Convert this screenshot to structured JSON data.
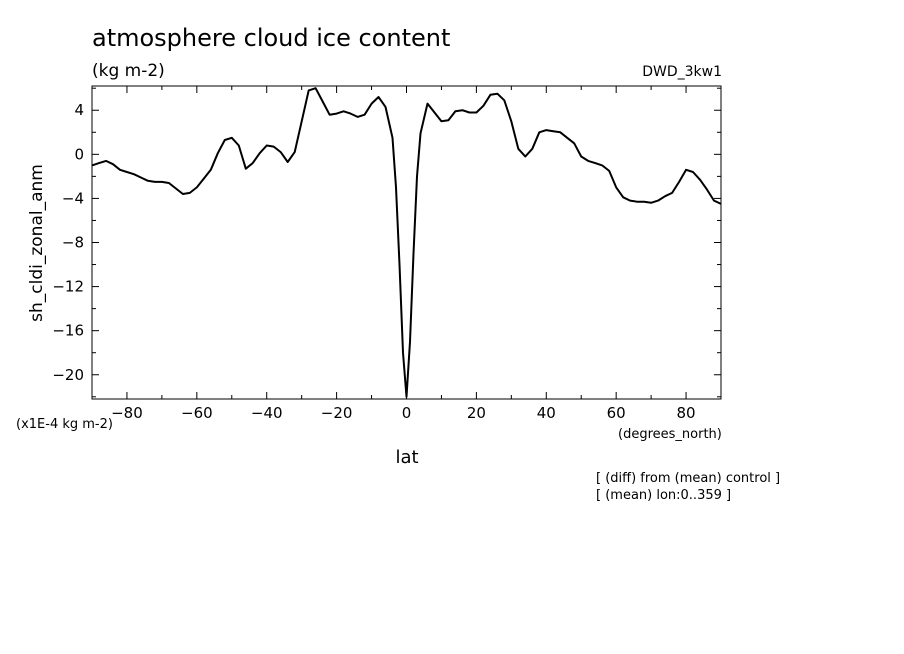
{
  "chart_data": {
    "type": "line",
    "title": "atmosphere cloud ice content",
    "title_units": "(kg m-2)",
    "model_label": "DWD_3kw1",
    "ylabel": "sh_cldi_zonal_anm",
    "y_scale_label": "(x1E-4 kg m-2)",
    "xlabel": "lat",
    "x_units_label": "(degrees_north)",
    "notes": [
      "[ (diff) from (mean) control ]",
      "[ (mean) lon:0..359 ]"
    ],
    "xlim": [
      -90,
      90
    ],
    "ylim": [
      -22.2,
      6.2
    ],
    "x_ticks": [
      -80,
      -60,
      -40,
      -20,
      0,
      20,
      40,
      60,
      80
    ],
    "y_ticks": [
      4,
      0,
      -4,
      -8,
      -12,
      -16,
      -20
    ],
    "grid": false,
    "series": [
      {
        "x": [
          -90,
          -88,
          -86,
          -84,
          -82,
          -80,
          -78,
          -76,
          -74,
          -72,
          -70,
          -68,
          -66,
          -64,
          -62,
          -60,
          -58,
          -56,
          -54,
          -52,
          -50,
          -48,
          -46,
          -44,
          -42,
          -40,
          -38,
          -36,
          -34,
          -32,
          -30,
          -28,
          -26,
          -24,
          -22,
          -20,
          -18,
          -16,
          -14,
          -12,
          -10,
          -8,
          -6,
          -4,
          -3,
          -2,
          -1,
          0,
          1,
          2,
          3,
          4,
          6,
          8,
          10,
          12,
          14,
          16,
          18,
          20,
          22,
          24,
          26,
          28,
          30,
          32,
          34,
          36,
          38,
          40,
          42,
          44,
          46,
          48,
          50,
          52,
          54,
          56,
          58,
          60,
          62,
          64,
          66,
          68,
          70,
          72,
          74,
          76,
          78,
          80,
          82,
          84,
          86,
          88,
          90
        ],
        "y": [
          -1.0,
          -0.8,
          -0.6,
          -0.9,
          -1.4,
          -1.6,
          -1.8,
          -2.1,
          -2.4,
          -2.5,
          -2.5,
          -2.6,
          -3.1,
          -3.6,
          -3.5,
          -3.0,
          -2.2,
          -1.4,
          0.1,
          1.3,
          1.5,
          0.8,
          -1.3,
          -0.8,
          0.1,
          0.8,
          0.7,
          0.2,
          -0.7,
          0.2,
          3.0,
          5.8,
          6.0,
          4.8,
          3.6,
          3.7,
          3.9,
          3.7,
          3.4,
          3.6,
          4.6,
          5.2,
          4.3,
          1.5,
          -3.0,
          -10.0,
          -18.0,
          -22.0,
          -17.0,
          -9.0,
          -2.0,
          1.9,
          4.6,
          3.8,
          3.0,
          3.1,
          3.9,
          4.0,
          3.8,
          3.8,
          4.4,
          5.4,
          5.5,
          4.9,
          3.0,
          0.5,
          -0.2,
          0.5,
          2.0,
          2.2,
          2.1,
          2.0,
          1.5,
          1.0,
          -0.2,
          -0.6,
          -0.8,
          -1.0,
          -1.5,
          -3.0,
          -3.9,
          -4.2,
          -4.3,
          -4.3,
          -4.4,
          -4.2,
          -3.8,
          -3.5,
          -2.5,
          -1.4,
          -1.6,
          -2.3,
          -3.2,
          -4.2,
          -4.5
        ]
      }
    ]
  }
}
